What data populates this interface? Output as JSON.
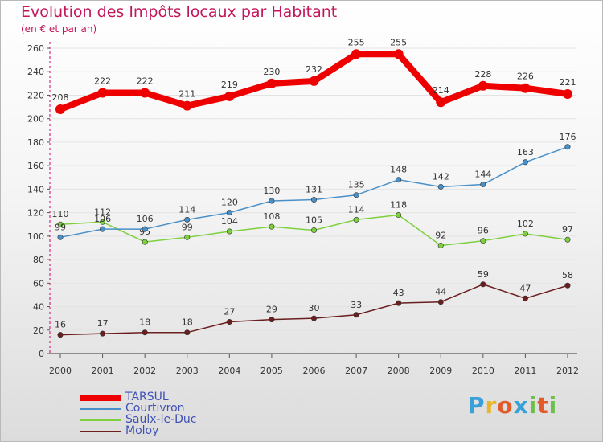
{
  "header": {
    "title": "Evolution des Impôts locaux par Habitant",
    "subtitle": "(en € et par an)"
  },
  "logo": {
    "text": "Proxiti"
  },
  "colors": {
    "title": "#c2185b",
    "axis": "#d0006f",
    "grid": "#e3e3e3",
    "legend_text": "#3f51b5"
  },
  "chart_data": {
    "type": "line",
    "title": "Evolution des Impôts locaux par Habitant",
    "subtitle": "(en € et par an)",
    "xlabel": "",
    "ylabel": "",
    "x": [
      "2000",
      "2001",
      "2002",
      "2003",
      "2004",
      "2005",
      "2006",
      "2007",
      "2008",
      "2009",
      "2010",
      "2011",
      "2012"
    ],
    "ylim": [
      0,
      260
    ],
    "yticks": [
      0,
      20,
      40,
      60,
      80,
      100,
      120,
      140,
      160,
      180,
      200,
      220,
      240,
      260
    ],
    "grid": true,
    "legend_position": "bottom-left",
    "series": [
      {
        "name": "TARSUL",
        "color": "#ee0000",
        "values": [
          208,
          222,
          222,
          211,
          219,
          230,
          232,
          255,
          255,
          214,
          228,
          226,
          221
        ]
      },
      {
        "name": "Courtivron",
        "color": "#4a90c8",
        "values": [
          99,
          106,
          106,
          114,
          120,
          130,
          131,
          135,
          148,
          142,
          144,
          163,
          176
        ]
      },
      {
        "name": "Saulx-le-Duc",
        "color": "#7ed03f",
        "values": [
          110,
          112,
          95,
          99,
          104,
          108,
          105,
          114,
          118,
          92,
          96,
          102,
          97
        ]
      },
      {
        "name": "Moloy",
        "color": "#6b1e1e",
        "values": [
          16,
          17,
          18,
          18,
          27,
          29,
          30,
          33,
          43,
          44,
          59,
          47,
          58
        ]
      }
    ]
  }
}
